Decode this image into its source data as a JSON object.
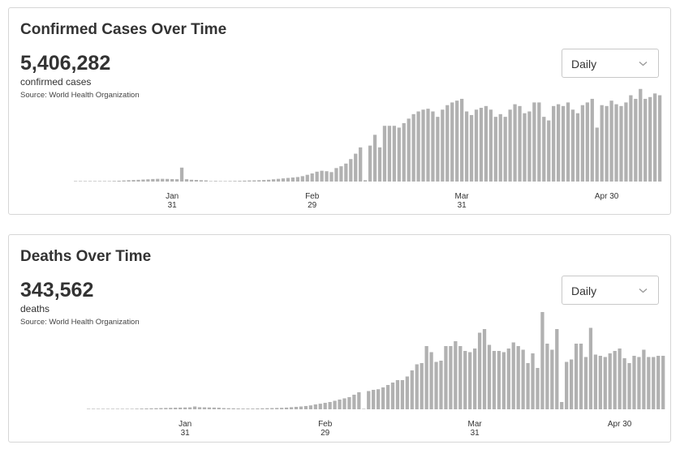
{
  "cases_card": {
    "title": "Confirmed Cases Over Time",
    "total": "5,406,282",
    "total_label": "confirmed cases",
    "source": "Source:  World Health Organization",
    "dropdown": {
      "selected": "Daily",
      "icon": "chevron-down-icon"
    }
  },
  "deaths_card": {
    "title": "Deaths Over Time",
    "total": "343,562",
    "total_label": "deaths",
    "source": "Source:  World Health Organization",
    "dropdown": {
      "selected": "Daily",
      "icon": "chevron-down-icon"
    }
  },
  "colors": {
    "bar": "#b1b1b1",
    "text": "#333333",
    "border": "#d6d6d6"
  },
  "chart_data": [
    {
      "type": "bar",
      "title": "Confirmed Cases Over Time",
      "xlabel": "",
      "ylabel": "",
      "grid": false,
      "start_date": "2020-01-11",
      "x_ticks": [
        {
          "day_index": 20,
          "line1": "Jan",
          "line2": "31"
        },
        {
          "day_index": 49,
          "line1": "Feb",
          "line2": "29"
        },
        {
          "day_index": 80,
          "line1": "Mar",
          "line2": "31"
        },
        {
          "day_index": 110,
          "line1": "Apr 30",
          "line2": ""
        }
      ],
      "ylim": [
        0,
        110000
      ],
      "values": [
        0,
        0,
        0,
        0,
        0,
        300,
        400,
        500,
        700,
        900,
        1200,
        1500,
        1700,
        1900,
        2200,
        2500,
        2800,
        3000,
        3000,
        2900,
        2700,
        2600,
        15500,
        2600,
        2000,
        1800,
        1500,
        1300,
        0,
        700,
        500,
        500,
        600,
        700,
        800,
        1000,
        1200,
        1300,
        1500,
        1700,
        2000,
        2500,
        3000,
        3500,
        4000,
        4500,
        5000,
        6000,
        7500,
        9000,
        11000,
        12000,
        11500,
        10500,
        15000,
        17000,
        20000,
        25000,
        31000,
        38000,
        1500,
        40000,
        52000,
        38000,
        62000,
        62000,
        62000,
        60000,
        65000,
        70000,
        75000,
        78000,
        80000,
        81000,
        78000,
        72000,
        80000,
        85000,
        88000,
        90000,
        92000,
        78000,
        74000,
        80000,
        82000,
        84000,
        80000,
        72000,
        75000,
        72000,
        80000,
        86000,
        84000,
        76000,
        78000,
        88000,
        88000,
        72000,
        68000,
        84000,
        86000,
        84000,
        88000,
        80000,
        76000,
        85000,
        88000,
        92000,
        60000,
        85000,
        84000,
        90000,
        86000,
        84000,
        88000,
        96000,
        92000,
        103000,
        92000,
        94000,
        98000,
        96000
      ]
    },
    {
      "type": "bar",
      "title": "Deaths Over Time",
      "xlabel": "",
      "ylabel": "",
      "grid": false,
      "start_date": "2020-01-11",
      "x_ticks": [
        {
          "day_index": 20,
          "line1": "Jan",
          "line2": "31"
        },
        {
          "day_index": 49,
          "line1": "Feb",
          "line2": "29"
        },
        {
          "day_index": 80,
          "line1": "Mar",
          "line2": "31"
        },
        {
          "day_index": 110,
          "line1": "Apr 30",
          "line2": ""
        }
      ],
      "ylim": [
        0,
        8000
      ],
      "values": [
        0,
        0,
        0,
        0,
        10,
        15,
        20,
        25,
        30,
        40,
        50,
        60,
        70,
        80,
        90,
        100,
        110,
        120,
        130,
        140,
        150,
        160,
        230,
        170,
        160,
        150,
        140,
        130,
        100,
        90,
        80,
        70,
        60,
        60,
        60,
        70,
        80,
        90,
        100,
        110,
        120,
        140,
        170,
        200,
        230,
        270,
        320,
        400,
        460,
        530,
        600,
        700,
        800,
        900,
        1000,
        1200,
        1400,
        0,
        1500,
        1600,
        1650,
        1800,
        2000,
        2200,
        2400,
        2400,
        2700,
        3200,
        3700,
        3800,
        5200,
        4700,
        3900,
        4000,
        5200,
        5200,
        5600,
        5200,
        4800,
        4700,
        5000,
        6300,
        6600,
        5300,
        4800,
        4800,
        4700,
        5000,
        5500,
        5200,
        4900,
        3800,
        4600,
        3400,
        8000,
        5400,
        4900,
        6600,
        600,
        3900,
        4100,
        5400,
        5400,
        4300,
        6700,
        4500,
        4400,
        4300,
        4600,
        4800,
        5000,
        4200,
        3800,
        4400,
        4300,
        4900,
        4300,
        4300,
        4400,
        4400
      ]
    }
  ]
}
